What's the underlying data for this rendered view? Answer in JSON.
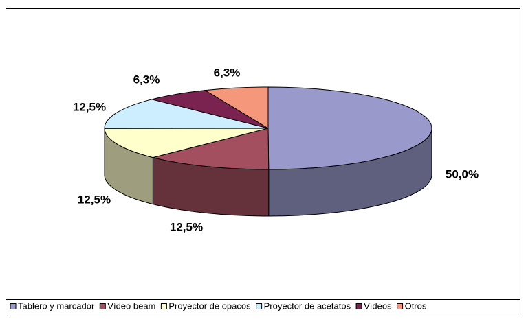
{
  "chart_data": {
    "type": "pie3d",
    "categories": [
      "Tablero y marcador",
      "Vídeo beam",
      "Proyector de opacos",
      "Proyector de acetatos",
      "Vídeos",
      "Otros"
    ],
    "values": [
      50,
      12.5,
      12.5,
      12.5,
      6.3,
      6.3
    ],
    "value_labels": [
      "50,0%",
      "12,5%",
      "12,5%",
      "12,5%",
      "6,3%",
      "6,3%"
    ],
    "colors": [
      "#9999cc",
      "#a34f5f",
      "#ffffcc",
      "#cceeff",
      "#7a2350",
      "#f5977a"
    ],
    "legend": "bottom"
  }
}
